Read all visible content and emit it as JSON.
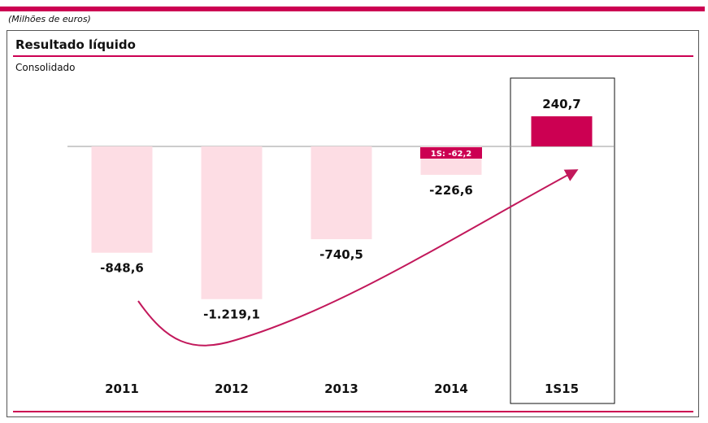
{
  "header": {
    "units": "(Milhões de euros)",
    "title": "Resultado líquido",
    "subtitle": "Consolidado"
  },
  "colors": {
    "accent": "#cc0052",
    "bar_light": "#fddde4",
    "baseline": "#999999",
    "arrow": "#c2185b"
  },
  "chart_data": {
    "type": "bar",
    "title": "Resultado líquido",
    "subtitle": "Consolidado",
    "xlabel": "",
    "ylabel": "",
    "ylim": [
      -1300,
      300
    ],
    "grid": false,
    "categories": [
      "2011",
      "2012",
      "2013",
      "2014",
      "1S15"
    ],
    "values": [
      -848.6,
      -1219.1,
      -740.5,
      -226.6,
      240.7
    ],
    "value_labels": [
      "-848,6",
      "-1.219,1",
      "-740,5",
      "-226,6",
      "240,7"
    ],
    "highlight_index": 4,
    "annotations": [
      {
        "category": "2014",
        "label": "1S: -62,2",
        "value": -62.2
      }
    ],
    "trend_arrow": true
  }
}
